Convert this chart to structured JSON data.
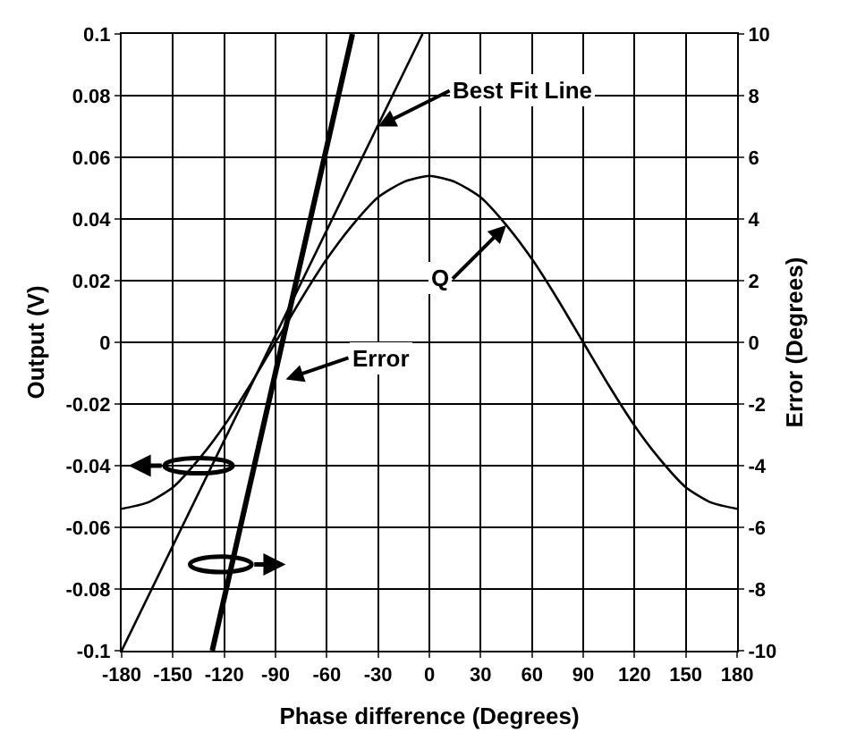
{
  "chart_data": {
    "type": "line",
    "xlabel": "Phase difference (Degrees)",
    "ylabel": "Output (V)",
    "y2label": "Error (Degrees)",
    "series": [
      {
        "color": "#000000",
        "x": [
          -180,
          -165,
          -150,
          -135,
          -120,
          -105,
          -90,
          -75,
          -60,
          -45,
          -30,
          -15,
          0,
          15,
          30,
          45,
          60,
          75,
          90,
          105,
          120,
          135,
          150,
          165,
          180
        ],
        "values": [
          -0.054,
          -0.052,
          -0.047,
          -0.038,
          -0.027,
          -0.014,
          0,
          0.014,
          0.027,
          0.038,
          0.047,
          0.052,
          0.054,
          0.052,
          0.047,
          0.038,
          0.027,
          0.014,
          0,
          -0.014,
          -0.027,
          -0.038,
          -0.047,
          -0.052,
          -0.054
        ]
      },
      {
        "color": "#000000",
        "x": [
          -180,
          -4
        ],
        "values": [
          -0.1,
          0.1
        ]
      },
      {
        "color": "#000000",
        "axis": "y2",
        "x": [
          -127,
          -45
        ],
        "values": [
          -10,
          10
        ]
      }
    ],
    "annotations": [
      {
        "text": "Best Fit Line",
        "x": -30,
        "y": 0.07
      },
      {
        "text": "Error",
        "x": -84,
        "y": -0.012
      },
      {
        "text": "Q",
        "x": 45,
        "y": 0.038
      }
    ],
    "xlim": [
      -180,
      180
    ],
    "xticks": [
      -180,
      -150,
      -120,
      -90,
      -60,
      -30,
      0,
      30,
      60,
      90,
      120,
      150,
      180
    ],
    "ylim": [
      -0.1,
      0.1
    ],
    "yticks": [
      -0.1,
      -0.08,
      -0.06,
      -0.04,
      -0.02,
      0,
      0.02,
      0.04,
      0.06,
      0.08,
      0.1
    ],
    "y2lim": [
      -10,
      10
    ],
    "y2ticks": [
      -10,
      -8,
      -6,
      -4,
      -2,
      0,
      2,
      4,
      6,
      8,
      10
    ],
    "grid": true,
    "legend": false,
    "marker": "none",
    "line_style": "solid"
  }
}
